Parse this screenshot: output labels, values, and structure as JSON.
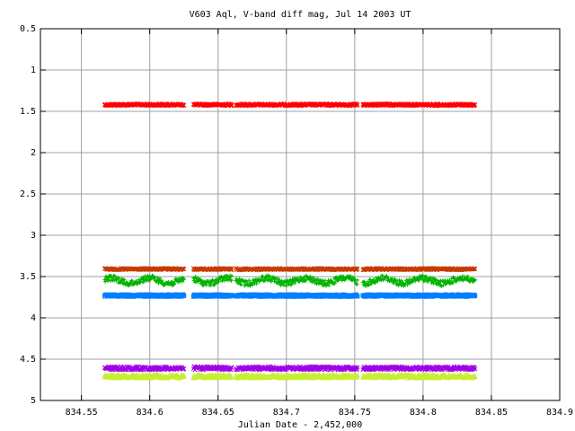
{
  "chart_data": {
    "type": "scatter",
    "title": "V603 Aql, V-band diff mag, Jul 14 2003 UT",
    "xlabel": "Julian Date - 2,452,000",
    "ylabel": "",
    "xlim": [
      834.52,
      834.9
    ],
    "ylim": [
      0.5,
      5
    ],
    "y_inverted": true,
    "grid": true,
    "x_ticks": [
      {
        "value": 834.55,
        "label": "834.55"
      },
      {
        "value": 834.6,
        "label": "834.6"
      },
      {
        "value": 834.65,
        "label": "834.65"
      },
      {
        "value": 834.7,
        "label": "834.7"
      },
      {
        "value": 834.75,
        "label": "834.75"
      },
      {
        "value": 834.8,
        "label": "834.8"
      },
      {
        "value": 834.85,
        "label": "834.85"
      },
      {
        "value": 834.9,
        "label": "834.9"
      }
    ],
    "y_ticks": [
      {
        "value": 0.5,
        "label": "0.5"
      },
      {
        "value": 1,
        "label": "1"
      },
      {
        "value": 1.5,
        "label": "1.5"
      },
      {
        "value": 2,
        "label": "2"
      },
      {
        "value": 2.5,
        "label": "2.5"
      },
      {
        "value": 3,
        "label": "3"
      },
      {
        "value": 3.5,
        "label": "3.5"
      },
      {
        "value": 4,
        "label": "4"
      },
      {
        "value": 4.5,
        "label": "4.5"
      },
      {
        "value": 5,
        "label": "5"
      }
    ],
    "observing_segments": [
      [
        834.567,
        834.625
      ],
      [
        834.632,
        834.66
      ],
      [
        834.663,
        834.752
      ],
      [
        834.756,
        834.838
      ]
    ],
    "series": [
      {
        "color": "#ff0000",
        "marker": "x",
        "baseline": 1.42,
        "scatter": 0.012
      },
      {
        "color": "#c83c00",
        "marker": "x",
        "baseline": 3.41,
        "scatter": 0.01
      },
      {
        "color": "#00b400",
        "marker": "+",
        "baseline": 3.55,
        "scatter": 0.035
      },
      {
        "color": "#0080ff",
        "marker": "square",
        "baseline": 3.73,
        "scatter": 0.012
      },
      {
        "color": "#a000e6",
        "marker": "x",
        "baseline": 4.61,
        "scatter": 0.02
      },
      {
        "color": "#c8ee32",
        "marker": "triangle",
        "baseline": 4.71,
        "scatter": 0.02
      }
    ]
  }
}
